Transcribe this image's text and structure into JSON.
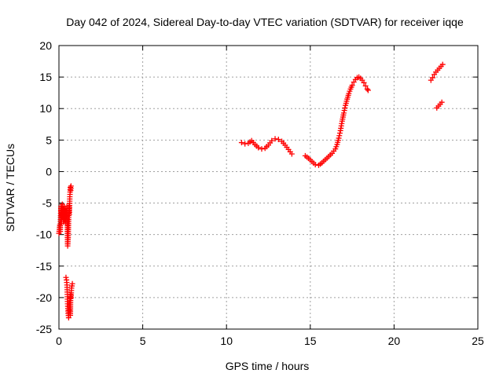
{
  "chart_data": {
    "type": "scatter",
    "title": "Day 042 of 2024, Sidereal Day-to-day VTEC variation (SDTVAR) for receiver iqqe",
    "xlabel": "GPS time / hours",
    "ylabel": "SDTVAR / TECUs",
    "xlim": [
      0,
      25
    ],
    "ylim": [
      -25,
      20
    ],
    "xticks": [
      0,
      5,
      10,
      15,
      20,
      25
    ],
    "yticks": [
      -25,
      -20,
      -15,
      -10,
      -5,
      0,
      5,
      10,
      15,
      20
    ],
    "grid": true,
    "marker": "+",
    "color": "#ff0000",
    "series": [
      {
        "name": "SDTVAR",
        "segments": [
          [
            [
              0.0,
              -9.8
            ],
            [
              0.05,
              -8.5
            ],
            [
              0.08,
              -9.5
            ],
            [
              0.1,
              -7.0
            ],
            [
              0.12,
              -5.5
            ],
            [
              0.15,
              -8.0
            ],
            [
              0.18,
              -6.5
            ],
            [
              0.2,
              -5.2
            ],
            [
              0.22,
              -7.2
            ],
            [
              0.25,
              -6.0
            ],
            [
              0.28,
              -8.0
            ],
            [
              0.3,
              -5.5
            ],
            [
              0.32,
              -6.8
            ],
            [
              0.35,
              -7.5
            ],
            [
              0.38,
              -5.8
            ],
            [
              0.4,
              -8.2
            ],
            [
              0.42,
              -6.2
            ],
            [
              0.45,
              -7.0
            ],
            [
              0.48,
              -5.5
            ],
            [
              0.5,
              -8.5
            ],
            [
              0.52,
              -11.8
            ],
            [
              0.55,
              -10.5
            ],
            [
              0.58,
              -7.0
            ],
            [
              0.6,
              -5.5
            ],
            [
              0.62,
              -6.8
            ],
            [
              0.65,
              -4.0
            ],
            [
              0.68,
              -2.5
            ],
            [
              0.7,
              -3.0
            ],
            [
              0.72,
              -2.3
            ]
          ],
          [
            [
              0.42,
              -16.8
            ],
            [
              0.45,
              -17.2
            ],
            [
              0.48,
              -18.0
            ],
            [
              0.5,
              -19.5
            ],
            [
              0.52,
              -21.0
            ],
            [
              0.55,
              -22.5
            ],
            [
              0.58,
              -23.2
            ],
            [
              0.6,
              -22.0
            ],
            [
              0.62,
              -21.5
            ],
            [
              0.65,
              -20.5
            ],
            [
              0.68,
              -22.8
            ],
            [
              0.7,
              -19.5
            ],
            [
              0.72,
              -20.0
            ],
            [
              0.75,
              -18.5
            ],
            [
              0.8,
              -17.8
            ]
          ],
          [
            [
              10.9,
              4.6
            ],
            [
              11.1,
              4.4
            ],
            [
              11.3,
              4.5
            ],
            [
              11.5,
              4.9
            ],
            [
              11.7,
              4.3
            ],
            [
              11.9,
              3.8
            ],
            [
              12.1,
              3.6
            ],
            [
              12.3,
              3.7
            ],
            [
              12.5,
              4.2
            ],
            [
              12.7,
              4.9
            ],
            [
              12.9,
              5.2
            ],
            [
              13.1,
              5.1
            ],
            [
              13.3,
              4.8
            ],
            [
              13.5,
              4.2
            ],
            [
              13.7,
              3.5
            ],
            [
              13.9,
              2.8
            ]
          ],
          [
            [
              14.7,
              2.5
            ],
            [
              14.9,
              2.1
            ],
            [
              15.1,
              1.6
            ],
            [
              15.3,
              1.1
            ],
            [
              15.5,
              1.0
            ],
            [
              15.7,
              1.4
            ],
            [
              15.9,
              1.9
            ],
            [
              16.1,
              2.4
            ],
            [
              16.3,
              2.9
            ],
            [
              16.5,
              3.6
            ],
            [
              16.6,
              4.3
            ],
            [
              16.7,
              5.3
            ],
            [
              16.8,
              6.5
            ],
            [
              16.9,
              8.0
            ],
            [
              17.0,
              9.3
            ],
            [
              17.1,
              10.5
            ],
            [
              17.2,
              11.5
            ],
            [
              17.3,
              12.4
            ],
            [
              17.4,
              13.1
            ],
            [
              17.5,
              13.7
            ],
            [
              17.6,
              14.2
            ],
            [
              17.7,
              14.6
            ],
            [
              17.8,
              14.9
            ],
            [
              17.9,
              15.0
            ],
            [
              18.0,
              14.8
            ],
            [
              18.1,
              14.5
            ],
            [
              18.2,
              14.1
            ],
            [
              18.3,
              13.6
            ],
            [
              18.4,
              13.1
            ],
            [
              18.45,
              12.9
            ]
          ],
          [
            [
              22.2,
              14.5
            ],
            [
              22.3,
              14.9
            ],
            [
              22.4,
              15.4
            ],
            [
              22.5,
              15.8
            ],
            [
              22.6,
              16.1
            ],
            [
              22.7,
              16.4
            ],
            [
              22.8,
              16.7
            ],
            [
              22.9,
              17.0
            ]
          ],
          [
            [
              22.55,
              10.1
            ],
            [
              22.65,
              10.4
            ],
            [
              22.75,
              10.7
            ],
            [
              22.85,
              11.0
            ]
          ]
        ]
      }
    ]
  }
}
